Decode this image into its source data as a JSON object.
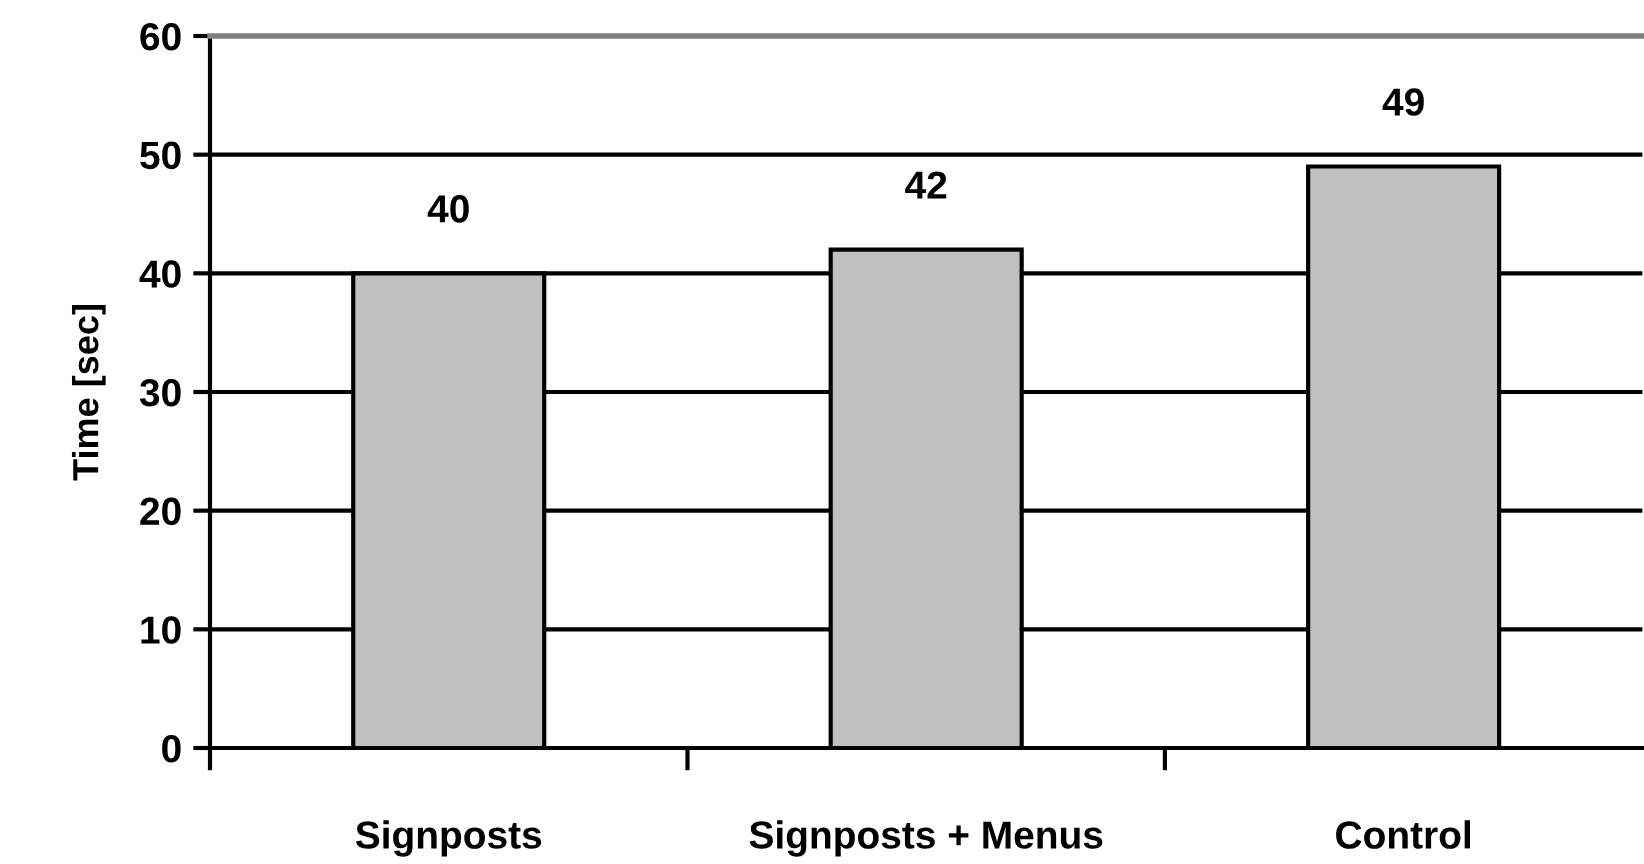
{
  "chart_data": {
    "type": "bar",
    "ylabel": "Time [sec]",
    "categories": [
      "Signposts",
      "Signposts + Menus",
      "Control"
    ],
    "values": [
      40,
      42,
      49
    ],
    "color": "#c0c0c0",
    "ylim": [
      0,
      60
    ],
    "yticks": [
      0,
      10,
      20,
      30,
      40,
      50,
      60
    ],
    "grid": "y",
    "data_labels": true
  }
}
